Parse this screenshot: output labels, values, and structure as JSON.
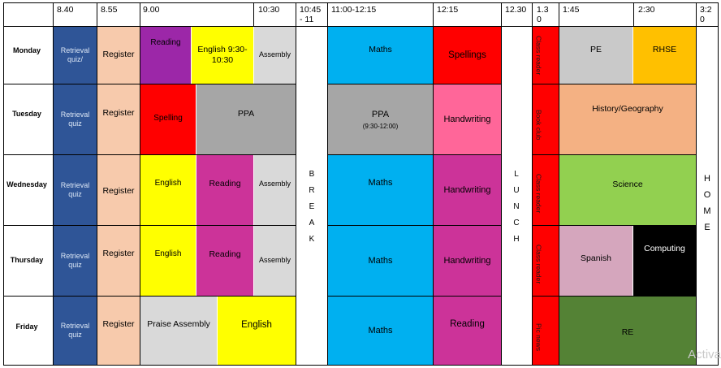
{
  "header": {
    "times": [
      "8.40",
      "8.55",
      "9.00",
      "10:30",
      "10:45 - 11",
      "11:00-12:15",
      "12:15",
      "12.30",
      "1.3 0",
      "1:45",
      "2:30",
      "3:2 0"
    ]
  },
  "days": [
    "Monday",
    "Tuesday",
    "Wednesday",
    "Thursday",
    "Friday"
  ],
  "colors": {
    "navy": "#2f5597",
    "peach": "#f7caac",
    "purple": "#9c27a8",
    "yellow": "#ffff00",
    "light_gray": "#d9d9d9",
    "gray": "#a6a6a6",
    "cyan": "#00b0f0",
    "red": "#ff0000",
    "pink": "#ff6699",
    "magenta": "#cc3399",
    "lilac": "#d5a6bd",
    "green": "#92d050",
    "dark_green": "#548235",
    "amber": "#ffc000",
    "salmon": "#f4b183",
    "black": "#000000"
  },
  "lessons": {
    "monday": {
      "retrieval": "Retrieval quiz/",
      "register": "Register",
      "reading": "Reading",
      "english": "English 9:30-10:30",
      "assembly": "Assembly",
      "maths": "Maths",
      "spellings": "Spellings",
      "reader": "Class reader",
      "pe": "PE",
      "rhse": "RHSE"
    },
    "tuesday": {
      "retrieval": "Retrieval quiz",
      "register": "Register",
      "spelling": "Spelling",
      "ppa": "PPA",
      "ppa2": "PPA",
      "ppa2_time": "(9:30-12:00)",
      "handwriting": "Handwriting",
      "reader": "Book club",
      "humanities": "History/Geography"
    },
    "wednesday": {
      "retrieval": "Retrieval quiz",
      "register": "Register",
      "english": "English",
      "reading": "Reading",
      "assembly": "Assembly",
      "maths": "Maths",
      "handwriting": "Handwriting",
      "reader": "Class reader",
      "science": "Science"
    },
    "thursday": {
      "retrieval": "Retrieval quiz",
      "register": "Register",
      "english": "English",
      "reading": "Reading",
      "assembly": "Assembly",
      "maths": "Maths",
      "handwriting": "Handwriting",
      "reader": "Class reader",
      "spanish": "Spanish",
      "computing": "Computing"
    },
    "friday": {
      "retrieval": "Retrieval quiz",
      "register": "Register",
      "praise": "Praise Assembly",
      "english": "English",
      "maths": "Maths",
      "reading": "Reading",
      "reader": "Pic news",
      "re": "RE"
    }
  },
  "breaks": {
    "break_letters": [
      "B",
      "R",
      "E",
      "A",
      "K"
    ],
    "lunch_letters": [
      "L",
      "U",
      "N",
      "C",
      "H"
    ],
    "home_letters": [
      "H",
      "O",
      "M",
      "E"
    ]
  },
  "watermark": "Activa"
}
